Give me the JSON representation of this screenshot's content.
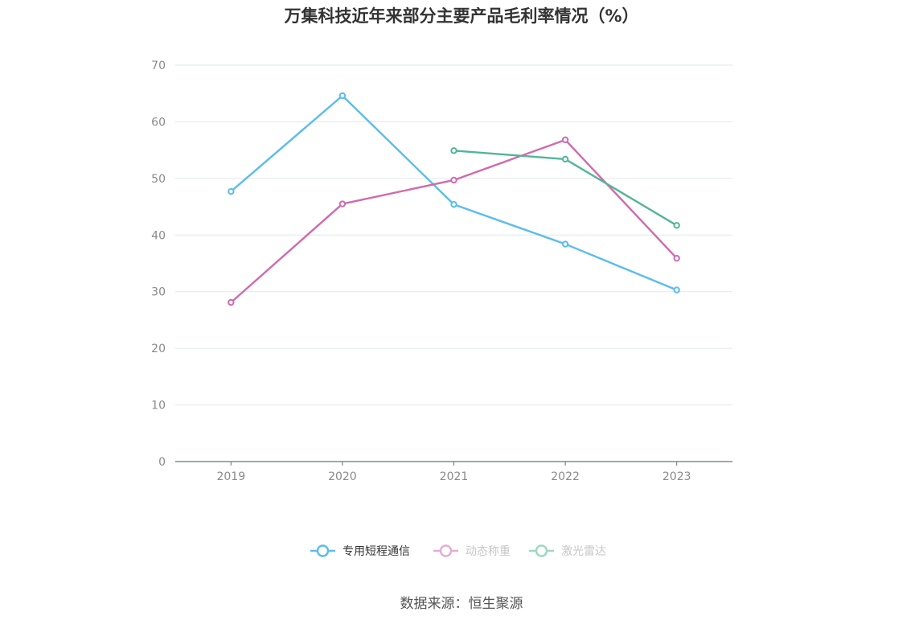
{
  "title": "万集科技近年来部分主要产品毛利率情况（%）",
  "source": "数据来源：恒生聚源",
  "chart_data": {
    "type": "line",
    "title": "万集科技近年来部分主要产品毛利率情况（%）",
    "categories": [
      "2019",
      "2020",
      "2021",
      "2022",
      "2023"
    ],
    "ylim": [
      0,
      70
    ],
    "yticks": [
      0,
      10,
      20,
      30,
      40,
      50,
      60,
      70
    ],
    "grid": true,
    "legend_position": "bottom",
    "series": [
      {
        "name": "专用短程通信",
        "color": "#5bbcee",
        "values": [
          47.7,
          64.6,
          45.4,
          38.4,
          30.3
        ]
      },
      {
        "name": "动态称重",
        "color": "#d06aae",
        "values": [
          28.1,
          45.5,
          49.7,
          56.8,
          35.9
        ]
      },
      {
        "name": "激光雷达",
        "color": "#52b596",
        "values": [
          null,
          null,
          54.9,
          53.4,
          41.7
        ]
      }
    ]
  }
}
